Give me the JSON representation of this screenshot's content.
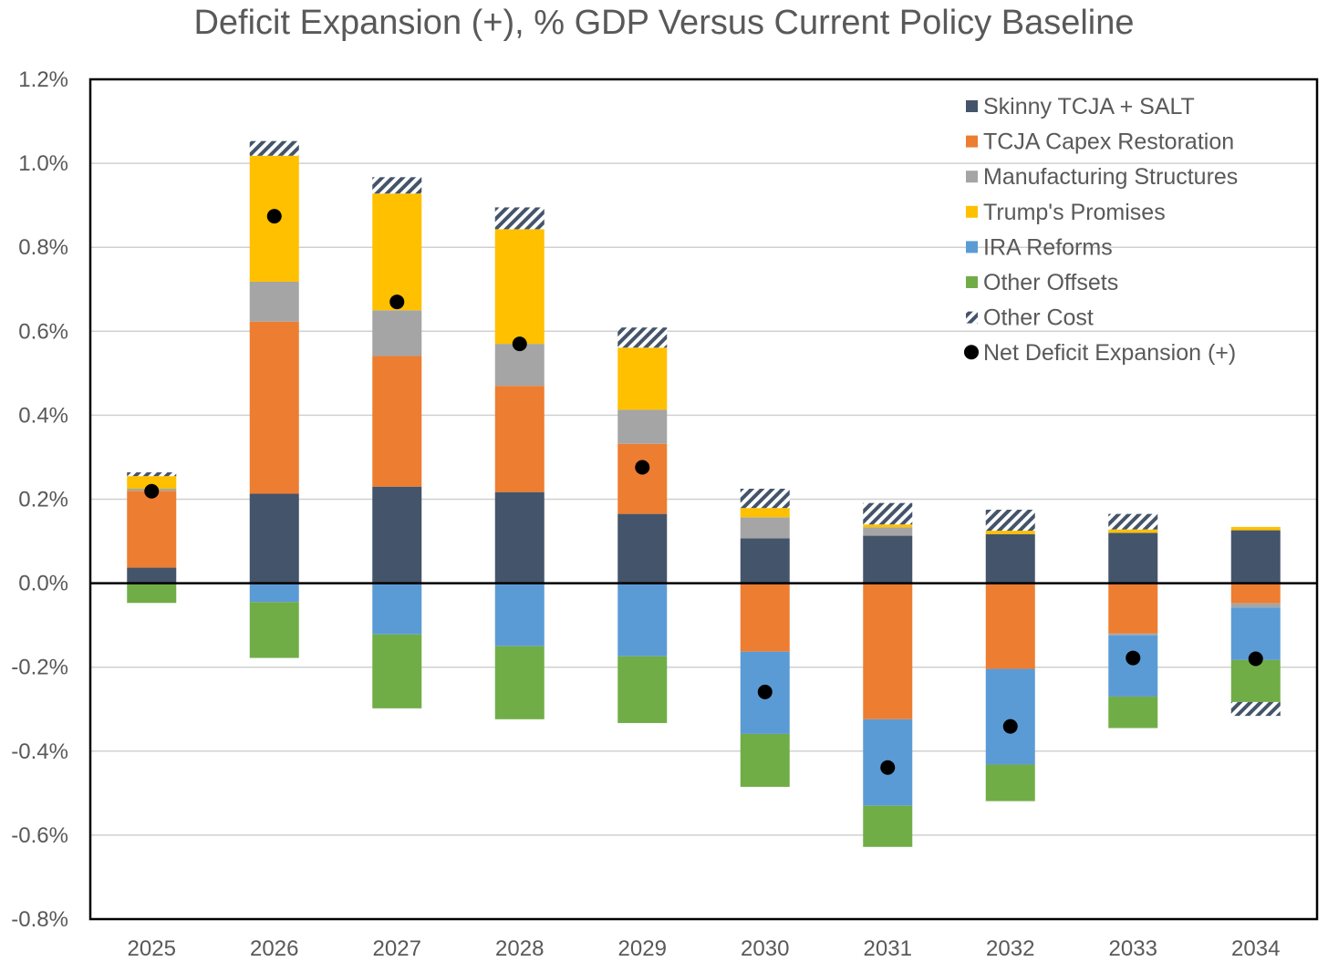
{
  "chart_data": {
    "type": "bar",
    "stacked": true,
    "title": "Deficit Expansion (+), % GDP Versus Current Policy Baseline",
    "xlabel": "",
    "ylabel": "",
    "ylim": [
      -0.8,
      1.2
    ],
    "yticks": [
      1.2,
      1.0,
      0.8,
      0.6,
      0.4,
      0.2,
      0.0,
      -0.2,
      -0.4,
      -0.6,
      -0.8
    ],
    "ytick_labels": [
      "1.2%",
      "1.0%",
      "0.8%",
      "0.6%",
      "0.4%",
      "0.2%",
      "0.0%",
      "-0.2%",
      "-0.4%",
      "-0.6%",
      "-0.8%"
    ],
    "grid": true,
    "legend_position": "top-right",
    "categories": [
      "2025",
      "2026",
      "2027",
      "2028",
      "2029",
      "2030",
      "2031",
      "2032",
      "2033",
      "2034"
    ],
    "series": [
      {
        "name": "Skinny TCJA + SALT",
        "color": "#44546A",
        "pattern": "solid",
        "values": [
          0.037,
          0.213,
          0.23,
          0.217,
          0.165,
          0.107,
          0.113,
          0.117,
          0.12,
          0.126
        ]
      },
      {
        "name": "TCJA Capex Restoration",
        "color": "#ED7D31",
        "pattern": "solid",
        "values": [
          0.183,
          0.41,
          0.311,
          0.253,
          0.167,
          -0.163,
          -0.324,
          -0.204,
          -0.12,
          -0.048
        ]
      },
      {
        "name": "Manufacturing Structures",
        "color": "#A5A5A5",
        "pattern": "solid",
        "values": [
          0.005,
          0.095,
          0.109,
          0.1,
          0.081,
          0.05,
          0.02,
          0.0,
          -0.004,
          -0.01
        ]
      },
      {
        "name": "Trump's Promises",
        "color": "#FFC000",
        "pattern": "solid",
        "values": [
          0.03,
          0.3,
          0.278,
          0.273,
          0.148,
          0.022,
          0.007,
          0.008,
          0.008,
          0.008
        ]
      },
      {
        "name": "IRA Reforms",
        "color": "#5B9BD5",
        "pattern": "solid",
        "values": [
          0.0,
          -0.045,
          -0.122,
          -0.15,
          -0.174,
          -0.196,
          -0.206,
          -0.228,
          -0.146,
          -0.125
        ]
      },
      {
        "name": "Other Offsets",
        "color": "#70AD47",
        "pattern": "solid",
        "values": [
          -0.047,
          -0.133,
          -0.176,
          -0.174,
          -0.159,
          -0.126,
          -0.098,
          -0.087,
          -0.075,
          -0.1
        ]
      },
      {
        "name": "Other Cost",
        "color": "#44546A",
        "pattern": "hatch",
        "values": [
          0.009,
          0.035,
          0.039,
          0.052,
          0.048,
          0.046,
          0.051,
          0.05,
          0.037,
          -0.033
        ]
      }
    ],
    "points": {
      "name": "Net Deficit Expansion (+)",
      "color": "#000000",
      "values": [
        0.219,
        0.874,
        0.67,
        0.57,
        0.276,
        -0.259,
        -0.439,
        -0.341,
        -0.178,
        -0.18
      ]
    }
  }
}
